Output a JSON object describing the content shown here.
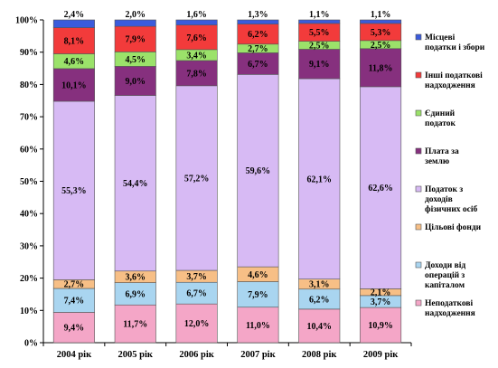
{
  "chart_data": {
    "type": "bar",
    "stacked": true,
    "percent": true,
    "categories": [
      "2004 рік",
      "2005 рік",
      "2006 рік",
      "2007 рік",
      "2008 рік",
      "2009 рік"
    ],
    "ylim": [
      0,
      100
    ],
    "yticks": [
      "0%",
      "10%",
      "20%",
      "30%",
      "40%",
      "50%",
      "60%",
      "70%",
      "80%",
      "90%",
      "100%"
    ],
    "grid": false,
    "legend_position": "right",
    "series": [
      {
        "name": "Неподаткові надходження",
        "color": "#f4a6c7",
        "values": [
          9.4,
          11.7,
          12.0,
          11.0,
          10.4,
          10.9
        ],
        "labels": [
          "9,4%",
          "11,7%",
          "12,0%",
          "11,0%",
          "10,4%",
          "10,9%"
        ]
      },
      {
        "name": "Доходи від операцій з капіталом",
        "color": "#a9d5f0",
        "values": [
          7.4,
          6.9,
          6.7,
          7.9,
          6.2,
          3.7
        ],
        "labels": [
          "7,4%",
          "6,9%",
          "6,7%",
          "7,9%",
          "6,2%",
          "3,7%"
        ]
      },
      {
        "name": "Цільові фонди",
        "color": "#f7bf86",
        "values": [
          2.7,
          3.6,
          3.7,
          4.6,
          3.1,
          2.1
        ],
        "labels": [
          "2,7%",
          "3,6%",
          "3,7%",
          "4,6%",
          "3,1%",
          "2,1%"
        ]
      },
      {
        "name": "Податок з доходів фізичних осіб",
        "color": "#d7baf4",
        "values": [
          55.3,
          54.4,
          57.2,
          59.6,
          62.1,
          62.6
        ],
        "labels": [
          "55,3%",
          "54,4%",
          "57,2%",
          "59,6%",
          "62,1%",
          "62,6%"
        ]
      },
      {
        "name": "Плата за землю",
        "color": "#86307e",
        "values": [
          10.1,
          9.0,
          7.8,
          6.7,
          9.1,
          11.8
        ],
        "labels": [
          "10,1%",
          "9,0%",
          "7,8%",
          "6,7%",
          "9,1%",
          "11,8%"
        ]
      },
      {
        "name": "Єдиний податок",
        "color": "#9be26a",
        "values": [
          4.6,
          4.5,
          3.4,
          2.7,
          2.5,
          2.5
        ],
        "labels": [
          "4,6%",
          "4,5%",
          "3,4%",
          "2,7%",
          "2,5%",
          "2,5%"
        ]
      },
      {
        "name": "Інші податкові надходження",
        "color": "#f23b3b",
        "values": [
          8.1,
          7.9,
          7.6,
          6.2,
          5.5,
          5.3
        ],
        "labels": [
          "8,1%",
          "7,9%",
          "7,6%",
          "6,2%",
          "5,5%",
          "5,3%"
        ]
      },
      {
        "name": "Місцеві податки і збори",
        "color": "#3b5bdc",
        "values": [
          2.4,
          2.0,
          1.6,
          1.3,
          1.1,
          1.1
        ],
        "labels": [
          "2,4%",
          "2,0%",
          "1,6%",
          "1,3%",
          "1,1%",
          "1,1%"
        ]
      }
    ],
    "legend": [
      {
        "series": 7,
        "lines": [
          "Місцеві",
          "податки і збори"
        ]
      },
      {
        "series": 6,
        "lines": [
          "Інші податкові",
          "надходження"
        ]
      },
      {
        "series": 5,
        "lines": [
          "Єдиний",
          "податок"
        ]
      },
      {
        "series": 4,
        "lines": [
          "Плата за",
          "землю"
        ]
      },
      {
        "series": 3,
        "lines": [
          "Податок з",
          "доходів",
          "фізичних осіб"
        ]
      },
      {
        "series": 2,
        "lines": [
          "Цільові фонди"
        ]
      },
      {
        "series": 1,
        "lines": [
          "Доходи від",
          "операцій з",
          "капіталом"
        ]
      },
      {
        "series": 0,
        "lines": [
          "Неподаткові",
          "надходження"
        ]
      }
    ]
  }
}
